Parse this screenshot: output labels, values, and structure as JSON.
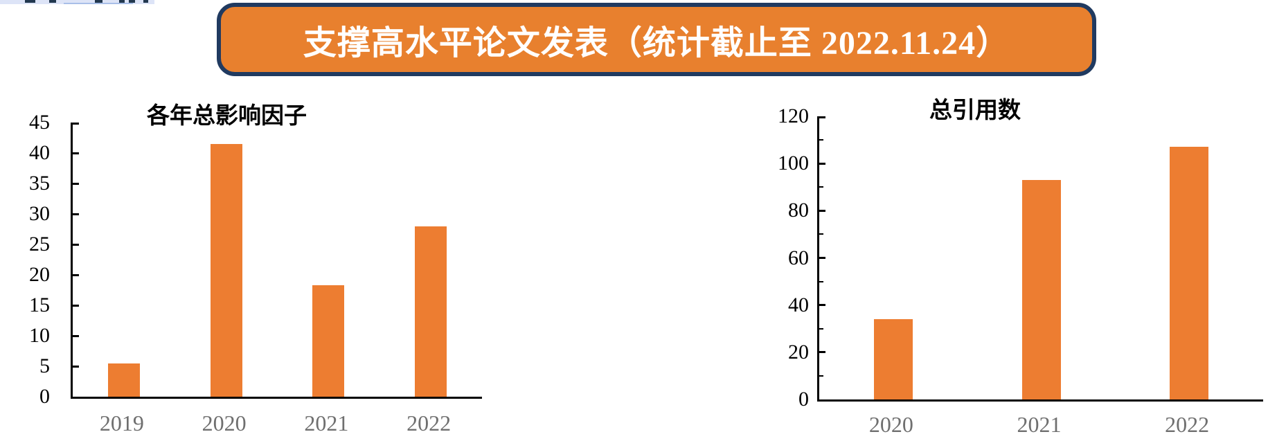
{
  "page": {
    "background": "#ffffff"
  },
  "clipped_header_fragment": {
    "strip_color": "#dde4f7",
    "underline_color": "#a9bfe8",
    "mark_color": "#22384f"
  },
  "banner": {
    "title": "支撑高水平论文发表（统计截止至 2022.11.24）",
    "fill_color": "#e8802e",
    "border_color": "#203a60",
    "text_color": "#ffffff"
  },
  "chart_data": [
    {
      "type": "bar",
      "title": "各年总影响因子",
      "categories": [
        "2019",
        "2020",
        "2021",
        "2022"
      ],
      "values": [
        5.5,
        41.5,
        18.3,
        27.9
      ],
      "ylim": [
        0,
        45
      ],
      "yticks": [
        0,
        5,
        10,
        15,
        20,
        25,
        30,
        35,
        40,
        45
      ],
      "yticks_minor": [],
      "xlabel": "",
      "ylabel": "",
      "grid": false,
      "legend": null,
      "bar_color": "#ed7d31",
      "axis_color": "#000000",
      "tick_label_color": "#000000",
      "category_label_color": "#6f6f6f"
    },
    {
      "type": "bar",
      "title": "总引用数",
      "categories": [
        "2020",
        "2021",
        "2022"
      ],
      "values": [
        34,
        93,
        107
      ],
      "ylim": [
        0,
        120
      ],
      "yticks": [
        0,
        20,
        40,
        60,
        80,
        100,
        120
      ],
      "yticks_minor": [
        10,
        30,
        50,
        70,
        90,
        110
      ],
      "xlabel": "",
      "ylabel": "",
      "grid": false,
      "legend": null,
      "bar_color": "#ed7d31",
      "axis_color": "#000000",
      "tick_label_color": "#000000",
      "category_label_color": "#6f6f6f"
    }
  ]
}
